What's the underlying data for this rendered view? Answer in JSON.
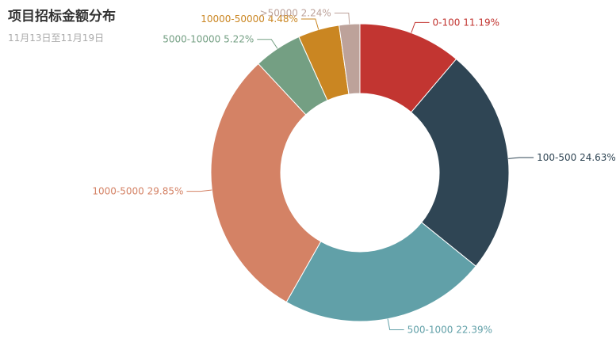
{
  "chart_data": {
    "type": "pie",
    "title": "项目招标金额分布",
    "subtitle": "11月13日至11月19日",
    "donut": true,
    "slices": [
      {
        "name": "0-100",
        "value": 11.19,
        "label": "0-100 11.19%",
        "color": "#c23531"
      },
      {
        "name": "100-500",
        "value": 24.63,
        "label": "100-500 24.63%",
        "color": "#2f4554"
      },
      {
        "name": "500-1000",
        "value": 22.39,
        "label": "500-1000 22.39%",
        "color": "#61a0a8"
      },
      {
        "name": "1000-5000",
        "value": 29.85,
        "label": "1000-5000 29.85%",
        "color": "#d48265"
      },
      {
        "name": "5000-10000",
        "value": 5.22,
        "label": "5000-10000 5.22%",
        "color": "#749f83"
      },
      {
        "name": "10000-50000",
        "value": 4.48,
        "label": "10000-50000 4.48%",
        "color": "#ca8622"
      },
      {
        "name": ">50000",
        "value": 2.24,
        "label": ">50000 2.24%",
        "color": "#bda29a"
      }
    ]
  }
}
